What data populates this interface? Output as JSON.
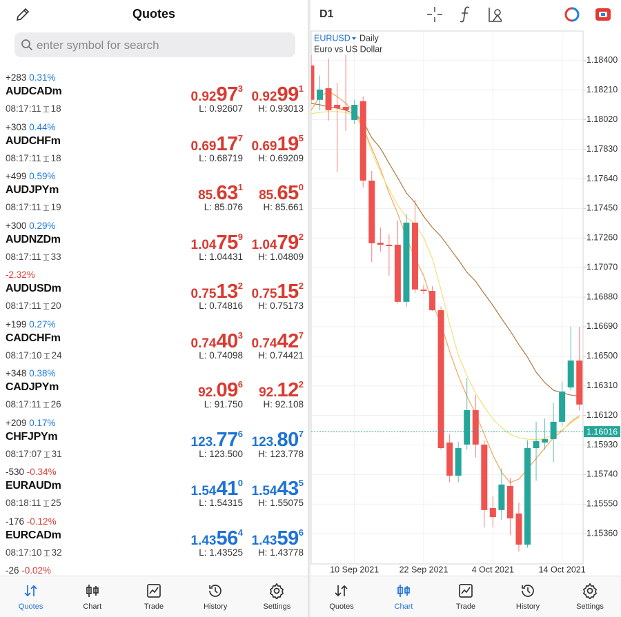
{
  "quotes_panel": {
    "title": "Quotes",
    "search_placeholder": "enter symbol for search",
    "rows": [
      {
        "change": "+283",
        "percent": "0.31%",
        "percent_color": "#1f7ae0",
        "symbol": "AUDCADm",
        "time": "08:17:11",
        "spread": "18",
        "bid": [
          "0.92",
          "97",
          "3"
        ],
        "ask": [
          "0.92",
          "99",
          "1"
        ],
        "price_color": "#d93a30",
        "low": "L: 0.92607",
        "high": "H: 0.93013"
      },
      {
        "change": "+303",
        "percent": "0.44%",
        "percent_color": "#1f7ae0",
        "symbol": "AUDCHFm",
        "time": "08:17:11",
        "spread": "18",
        "bid": [
          "0.69",
          "17",
          "7"
        ],
        "ask": [
          "0.69",
          "19",
          "5"
        ],
        "price_color": "#d93a30",
        "low": "L: 0.68719",
        "high": "H: 0.69209"
      },
      {
        "change": "+499",
        "percent": "0.59%",
        "percent_color": "#1f7ae0",
        "symbol": "AUDJPYm",
        "time": "08:17:11",
        "spread": "19",
        "bid": [
          "85.",
          "63",
          "1"
        ],
        "ask": [
          "85.",
          "65",
          "0"
        ],
        "price_color": "#d93a30",
        "low": "L: 85.076",
        "high": "H: 85.661"
      },
      {
        "change": "+300",
        "percent": "0.29%",
        "percent_color": "#1f7ae0",
        "symbol": "AUDNZDm",
        "time": "08:17:11",
        "spread": "33",
        "bid": [
          "1.04",
          "75",
          "9"
        ],
        "ask": [
          "1.04",
          "79",
          "2"
        ],
        "price_color": "#d93a30",
        "low": "L: 1.04431",
        "high": "H: 1.04809"
      },
      {
        "percent": "-2.32%",
        "percent_color": "#e0403a",
        "symbol": "AUDUSDm",
        "time": "08:17:11",
        "spread": "20",
        "bid": [
          "0.75",
          "13",
          "2"
        ],
        "ask": [
          "0.75",
          "15",
          "2"
        ],
        "price_color": "#d93a30",
        "low": "L: 0.74816",
        "high": "H: 0.75173"
      },
      {
        "change": "+199",
        "percent": "0.27%",
        "percent_color": "#1f7ae0",
        "symbol": "CADCHFm",
        "time": "08:17:10",
        "spread": "24",
        "bid": [
          "0.74",
          "40",
          "3"
        ],
        "ask": [
          "0.74",
          "42",
          "7"
        ],
        "price_color": "#d93a30",
        "low": "L: 0.74098",
        "high": "H: 0.74421"
      },
      {
        "change": "+348",
        "percent": "0.38%",
        "percent_color": "#1f7ae0",
        "symbol": "CADJPYm",
        "time": "08:17:11",
        "spread": "26",
        "bid": [
          "92.",
          "09",
          "6"
        ],
        "ask": [
          "92.",
          "12",
          "2"
        ],
        "price_color": "#d93a30",
        "low": "L: 91.750",
        "high": "H: 92.108"
      },
      {
        "change": "+209",
        "percent": "0.17%",
        "percent_color": "#1f7ae0",
        "symbol": "CHFJPYm",
        "time": "08:17:07",
        "spread": "31",
        "bid": [
          "123.",
          "77",
          "6"
        ],
        "ask": [
          "123.",
          "80",
          "7"
        ],
        "price_color": "#1f73d6",
        "low": "L: 123.500",
        "high": "H: 123.778"
      },
      {
        "change": "-530",
        "percent": "-0.34%",
        "percent_color": "#e0403a",
        "symbol": "EURAUDm",
        "time": "08:18:11",
        "spread": "25",
        "bid": [
          "1.54",
          "41",
          "0"
        ],
        "ask": [
          "1.54",
          "43",
          "5"
        ],
        "price_color": "#1f73d6",
        "low": "L: 1.54315",
        "high": "H: 1.55075"
      },
      {
        "change": "-176",
        "percent": "-0.12%",
        "percent_color": "#e0403a",
        "symbol": "EURCADm",
        "time": "08:17:10",
        "spread": "32",
        "bid": [
          "1.43",
          "56",
          "4"
        ],
        "ask": [
          "1.43",
          "59",
          "6"
        ],
        "price_color": "#1f73d6",
        "low": "L: 1.43525",
        "high": "H: 1.43778"
      },
      {
        "change": "-26",
        "percent": "-0.02%",
        "percent_color": "#e0403a"
      }
    ],
    "tabbar": {
      "items": [
        "Quotes",
        "Chart",
        "Trade",
        "History",
        "Settings"
      ],
      "active": 0
    }
  },
  "chart_panel": {
    "timeframe": "D1",
    "tabbar": {
      "items": [
        "Quotes",
        "Chart",
        "Trade",
        "History",
        "Settings"
      ],
      "active": 1
    }
  },
  "chart_data": {
    "type": "candlestick",
    "symbol": "EURUSD",
    "period": "Daily",
    "subtitle": "Euro vs US Dollar",
    "categories": [
      null,
      null,
      null,
      null,
      null,
      "10 Sep 2021",
      null,
      null,
      null,
      null,
      null,
      null,
      null,
      "22 Sep 2021",
      null,
      null,
      null,
      null,
      null,
      null,
      null,
      "4 Oct 2021",
      null,
      null,
      null,
      null,
      null,
      null,
      null,
      "14 Oct 2021",
      null,
      null
    ],
    "open": [
      1.18369,
      1.18148,
      1.18223,
      1.18116,
      1.18103,
      1.18019,
      1.18139,
      1.17629,
      1.1723,
      1.17217,
      1.17217,
      1.1685,
      1.17359,
      1.16929,
      1.1692,
      1.16796,
      1.15946,
      1.15733,
      1.15933,
      1.16154,
      1.15933,
      1.15525,
      1.15512,
      1.15667,
      1.1549,
      1.1529,
      1.1591,
      1.15946,
      1.15968,
      1.16079,
      1.163,
      1.16473
    ],
    "high": [
      1.18435,
      1.18303,
      1.18413,
      1.18258,
      1.18435,
      1.18148,
      1.1817,
      1.17691,
      1.17328,
      1.17284,
      1.17372,
      1.17417,
      1.17505,
      1.1696,
      1.1695,
      1.1682,
      1.16,
      1.1595,
      1.1636,
      1.1625,
      1.1596,
      1.156,
      1.1578,
      1.1572,
      1.1556,
      1.1596,
      1.1608,
      1.161,
      1.162,
      1.1634,
      1.1669,
      1.1669
    ],
    "low": [
      1.18125,
      1.18081,
      1.18015,
      1.17682,
      1.17948,
      1.17992,
      1.17585,
      1.17106,
      1.17173,
      1.17018,
      1.16841,
      1.16818,
      1.16907,
      1.169,
      1.1679,
      1.159,
      1.1569,
      1.1569,
      1.159,
      1.1585,
      1.154,
      1.154,
      1.1545,
      1.1535,
      1.15246,
      1.1527,
      1.157,
      1.159,
      1.1582,
      1.1605,
      1.1628,
      1.1615
    ],
    "close": [
      1.18148,
      1.18214,
      1.18081,
      1.18094,
      1.18081,
      1.18116,
      1.17629,
      1.17226,
      1.17217,
      1.17208,
      1.1685,
      1.17359,
      1.16929,
      1.1692,
      1.16796,
      1.1591,
      1.15733,
      1.1591,
      1.16154,
      1.15933,
      1.15512,
      1.15467,
      1.15676,
      1.15459,
      1.1529,
      1.1591,
      1.15955,
      1.15968,
      1.16079,
      1.16274,
      1.16473,
      1.1619
    ],
    "up_color": "#26a69a",
    "down_color": "#ef5350",
    "series": [
      {
        "color": "#b07840",
        "values": [
          1.18125,
          1.18116,
          1.18103,
          1.18094,
          1.18081,
          1.18059,
          1.1801,
          1.17904,
          1.17837,
          1.1774,
          1.17647,
          1.17549,
          1.17487,
          1.17399,
          1.17328,
          1.1727,
          1.17195,
          1.1712,
          1.1704,
          1.16982,
          1.16903,
          1.16827,
          1.16743,
          1.16663,
          1.16575,
          1.16495,
          1.16398,
          1.16331,
          1.16282,
          1.16265,
          1.16251,
          1.16243
        ]
      },
      {
        "color": "#f2a65a",
        "values": [
          1.18081,
          1.1817,
          1.18201,
          1.1817,
          1.18125,
          1.18072,
          1.1797,
          1.17837,
          1.17705,
          1.17549,
          1.17417,
          1.17262,
          1.17129,
          1.17018,
          1.16841,
          1.16708,
          1.16531,
          1.16376,
          1.16243,
          1.16132,
          1.15999,
          1.15866,
          1.15755,
          1.15689,
          1.15711,
          1.15777,
          1.15844,
          1.1591,
          1.15977,
          1.16021,
          1.16079,
          1.16119
        ]
      },
      {
        "color": "#f3df7a",
        "values": [
          1.18059,
          1.18068,
          1.18072,
          1.18072,
          1.18068,
          1.18046,
          1.1797,
          1.17815,
          1.17682,
          1.17572,
          1.1747,
          1.17394,
          1.1735,
          1.17262,
          1.17129,
          1.16929,
          1.16708,
          1.16508,
          1.16376,
          1.16265,
          1.16176,
          1.16096,
          1.16043,
          1.15999,
          1.15977,
          1.15968,
          1.15964,
          1.15972,
          1.15999,
          1.16026,
          1.1607,
          1.1611
        ]
      }
    ],
    "ylim": [
      1.15166,
      1.1859
    ],
    "yticks": [
      {
        "value": 1.184,
        "label": "1.18400"
      },
      {
        "value": 1.1821,
        "label": "1.18210"
      },
      {
        "value": 1.1802,
        "label": "1.18020"
      },
      {
        "value": 1.1783,
        "label": "1.17830"
      },
      {
        "value": 1.1764,
        "label": "1.17640"
      },
      {
        "value": 1.1745,
        "label": "1.17450"
      },
      {
        "value": 1.1726,
        "label": "1.17260"
      },
      {
        "value": 1.1707,
        "label": "1.17070"
      },
      {
        "value": 1.1688,
        "label": "1.16880"
      },
      {
        "value": 1.1669,
        "label": "1.16690"
      },
      {
        "value": 1.165,
        "label": "1.16500"
      },
      {
        "value": 1.1631,
        "label": "1.16310"
      },
      {
        "value": 1.1612,
        "label": "1.16120"
      },
      {
        "value": 1.1593,
        "label": "1.15930"
      },
      {
        "value": 1.1574,
        "label": "1.15740"
      },
      {
        "value": 1.1555,
        "label": "1.15550"
      },
      {
        "value": 1.1536,
        "label": "1.15360"
      }
    ],
    "grid": true,
    "current_price": 1.16016,
    "current_price_color": "#26a69a"
  }
}
